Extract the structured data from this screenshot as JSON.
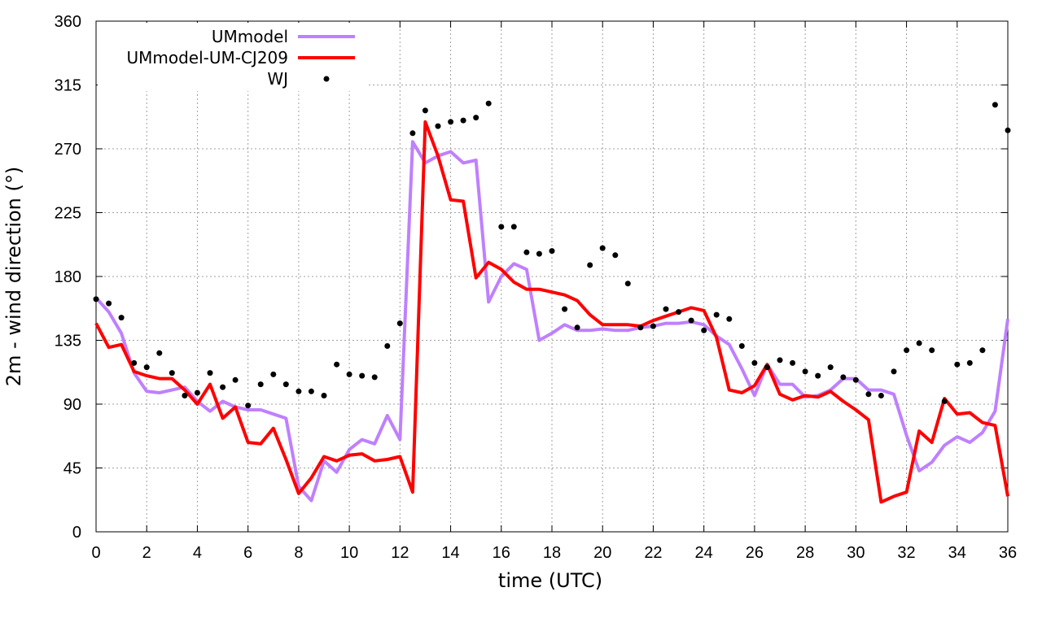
{
  "chart_data": {
    "type": "line",
    "xlabel": "time (UTC)",
    "ylabel": "2m - wind direction (°)",
    "xlim": [
      0,
      36
    ],
    "ylim": [
      0,
      360
    ],
    "xticks": [
      0,
      2,
      4,
      6,
      8,
      10,
      12,
      14,
      16,
      18,
      20,
      22,
      24,
      26,
      28,
      30,
      32,
      34,
      36
    ],
    "yticks": [
      0,
      45,
      90,
      135,
      180,
      225,
      270,
      315,
      360
    ],
    "grid": true,
    "legend_position": "top-left",
    "series": [
      {
        "name": "UMmodel",
        "style": "line",
        "color": "#bf80ff",
        "points": [
          [
            0,
            165
          ],
          [
            0.5,
            155
          ],
          [
            1,
            140
          ],
          [
            1.5,
            112
          ],
          [
            2,
            99
          ],
          [
            2.5,
            98
          ],
          [
            3,
            100
          ],
          [
            3.5,
            102
          ],
          [
            4,
            92
          ],
          [
            4.5,
            85
          ],
          [
            5,
            92
          ],
          [
            5.5,
            88
          ],
          [
            6,
            86
          ],
          [
            6.5,
            86
          ],
          [
            7,
            83
          ],
          [
            7.5,
            80
          ],
          [
            8,
            32
          ],
          [
            8.5,
            22
          ],
          [
            9,
            50
          ],
          [
            9.5,
            42
          ],
          [
            10,
            58
          ],
          [
            10.5,
            65
          ],
          [
            11,
            62
          ],
          [
            11.5,
            82
          ],
          [
            12,
            65
          ],
          [
            12.5,
            275
          ],
          [
            13,
            260
          ],
          [
            13.5,
            265
          ],
          [
            14,
            268
          ],
          [
            14.5,
            260
          ],
          [
            15,
            262
          ],
          [
            15.5,
            162
          ],
          [
            16,
            180
          ],
          [
            16.5,
            189
          ],
          [
            17,
            185
          ],
          [
            17.5,
            135
          ],
          [
            18,
            140
          ],
          [
            18.5,
            146
          ],
          [
            19,
            142
          ],
          [
            19.5,
            142
          ],
          [
            20,
            143
          ],
          [
            20.5,
            142
          ],
          [
            21,
            142
          ],
          [
            21.5,
            144
          ],
          [
            22,
            145
          ],
          [
            22.5,
            147
          ],
          [
            23,
            147
          ],
          [
            23.5,
            148
          ],
          [
            24,
            146
          ],
          [
            24.5,
            138
          ],
          [
            25,
            132
          ],
          [
            25.5,
            115
          ],
          [
            26,
            96
          ],
          [
            26.5,
            118
          ],
          [
            27,
            104
          ],
          [
            27.5,
            104
          ],
          [
            28,
            95
          ],
          [
            28.5,
            96
          ],
          [
            29,
            100
          ],
          [
            29.5,
            108
          ],
          [
            30,
            108
          ],
          [
            30.5,
            100
          ],
          [
            31,
            100
          ],
          [
            31.5,
            97
          ],
          [
            32,
            68
          ],
          [
            32.5,
            43
          ],
          [
            33,
            49
          ],
          [
            33.5,
            61
          ],
          [
            34,
            67
          ],
          [
            34.5,
            63
          ],
          [
            35,
            70
          ],
          [
            35.5,
            85
          ],
          [
            36,
            150
          ]
        ]
      },
      {
        "name": "UMmodel-UM-CJ209",
        "style": "line",
        "color": "#ff0000",
        "points": [
          [
            0,
            147
          ],
          [
            0.5,
            130
          ],
          [
            1,
            132
          ],
          [
            1.5,
            113
          ],
          [
            2,
            110
          ],
          [
            2.5,
            108
          ],
          [
            3,
            108
          ],
          [
            3.5,
            100
          ],
          [
            4,
            90
          ],
          [
            4.5,
            104
          ],
          [
            5,
            80
          ],
          [
            5.5,
            88
          ],
          [
            6,
            63
          ],
          [
            6.5,
            62
          ],
          [
            7,
            73
          ],
          [
            7.5,
            51
          ],
          [
            8,
            27
          ],
          [
            8.5,
            38
          ],
          [
            9,
            53
          ],
          [
            9.5,
            50
          ],
          [
            10,
            54
          ],
          [
            10.5,
            55
          ],
          [
            11,
            50
          ],
          [
            11.5,
            51
          ],
          [
            12,
            53
          ],
          [
            12.5,
            28
          ],
          [
            13,
            289
          ],
          [
            13.5,
            265
          ],
          [
            14,
            234
          ],
          [
            14.5,
            233
          ],
          [
            15,
            179
          ],
          [
            15.5,
            190
          ],
          [
            16,
            185
          ],
          [
            16.5,
            176
          ],
          [
            17,
            171
          ],
          [
            17.5,
            171
          ],
          [
            18,
            169
          ],
          [
            18.5,
            167
          ],
          [
            19,
            163
          ],
          [
            19.5,
            153
          ],
          [
            20,
            146
          ],
          [
            20.5,
            146
          ],
          [
            21,
            146
          ],
          [
            21.5,
            145
          ],
          [
            22,
            149
          ],
          [
            22.5,
            152
          ],
          [
            23,
            155
          ],
          [
            23.5,
            158
          ],
          [
            24,
            156
          ],
          [
            24.5,
            137
          ],
          [
            25,
            100
          ],
          [
            25.5,
            98
          ],
          [
            26,
            103
          ],
          [
            26.5,
            118
          ],
          [
            27,
            97
          ],
          [
            27.5,
            93
          ],
          [
            28,
            96
          ],
          [
            28.5,
            95
          ],
          [
            29,
            99
          ],
          [
            29.5,
            92
          ],
          [
            30,
            86
          ],
          [
            30.5,
            79
          ],
          [
            31,
            21
          ],
          [
            31.5,
            25
          ],
          [
            32,
            28
          ],
          [
            32.5,
            71
          ],
          [
            33,
            63
          ],
          [
            33.5,
            94
          ],
          [
            34,
            83
          ],
          [
            34.5,
            84
          ],
          [
            35,
            77
          ],
          [
            35.5,
            75
          ],
          [
            36,
            25
          ]
        ]
      },
      {
        "name": "WJ",
        "style": "points",
        "color": "#000000",
        "points": [
          [
            0,
            164
          ],
          [
            0.5,
            161
          ],
          [
            1,
            151
          ],
          [
            1.5,
            119
          ],
          [
            2,
            116
          ],
          [
            2.5,
            126
          ],
          [
            3,
            112
          ],
          [
            3.5,
            96
          ],
          [
            4,
            98
          ],
          [
            4.5,
            112
          ],
          [
            5,
            102
          ],
          [
            5.5,
            107
          ],
          [
            6,
            89
          ],
          [
            6.5,
            104
          ],
          [
            7,
            111
          ],
          [
            7.5,
            104
          ],
          [
            8,
            99
          ],
          [
            8.5,
            99
          ],
          [
            9,
            96
          ],
          [
            9.5,
            118
          ],
          [
            10,
            111
          ],
          [
            10.5,
            110
          ],
          [
            11,
            109
          ],
          [
            11.5,
            131
          ],
          [
            12,
            147
          ],
          [
            12.5,
            281
          ],
          [
            13,
            297
          ],
          [
            13.5,
            286
          ],
          [
            14,
            289
          ],
          [
            14.5,
            290
          ],
          [
            15,
            292
          ],
          [
            15.5,
            302
          ],
          [
            16,
            215
          ],
          [
            16.5,
            215
          ],
          [
            17,
            197
          ],
          [
            17.5,
            196
          ],
          [
            18,
            198
          ],
          [
            18.5,
            157
          ],
          [
            19,
            144
          ],
          [
            19.5,
            188
          ],
          [
            20,
            200
          ],
          [
            20.5,
            195
          ],
          [
            21,
            175
          ],
          [
            21.5,
            144
          ],
          [
            22,
            145
          ],
          [
            22.5,
            157
          ],
          [
            23,
            155
          ],
          [
            23.5,
            149
          ],
          [
            24,
            142
          ],
          [
            24.5,
            153
          ],
          [
            25,
            150
          ],
          [
            25.5,
            131
          ],
          [
            26,
            119
          ],
          [
            26.5,
            116
          ],
          [
            27,
            121
          ],
          [
            27.5,
            119
          ],
          [
            28,
            113
          ],
          [
            28.5,
            110
          ],
          [
            29,
            116
          ],
          [
            29.5,
            109
          ],
          [
            30,
            107
          ],
          [
            30.5,
            97
          ],
          [
            31,
            96
          ],
          [
            31.5,
            113
          ],
          [
            32,
            128
          ],
          [
            32.5,
            133
          ],
          [
            33,
            128
          ],
          [
            33.5,
            92
          ],
          [
            34,
            118
          ],
          [
            34.5,
            119
          ],
          [
            35,
            128
          ],
          [
            35.5,
            301
          ],
          [
            36,
            283
          ]
        ]
      }
    ]
  }
}
